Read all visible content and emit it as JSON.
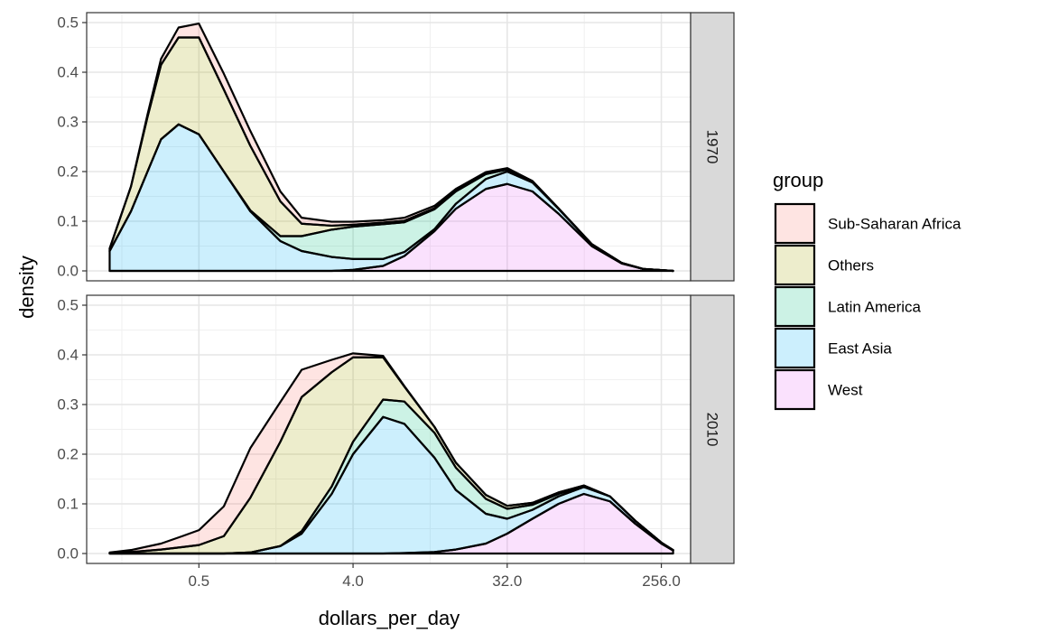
{
  "chart_data": {
    "type": "area",
    "subtype": "stacked-density",
    "xlabel": "dollars_per_day",
    "ylabel": "density",
    "x_scale": "log2",
    "x_ticks": [
      0.5,
      4.0,
      32.0,
      256.0
    ],
    "x_tick_labels": [
      "0.5",
      "4.0",
      "32.0",
      "256.0"
    ],
    "xlim": [
      0.11,
      380
    ],
    "ylim": [
      -0.02,
      0.52
    ],
    "y_ticks": [
      0.0,
      0.1,
      0.2,
      0.3,
      0.4,
      0.5
    ],
    "y_tick_labels": [
      "0.0",
      "0.1",
      "0.2",
      "0.3",
      "0.4",
      "0.5"
    ],
    "grid": true,
    "legend": {
      "title": "group",
      "position": "right",
      "entries": [
        "Sub-Saharan Africa",
        "Others",
        "Latin America",
        "East Asia",
        "West"
      ]
    },
    "colors": {
      "Sub-Saharan Africa": "#F8766D",
      "Others": "#A3A500",
      "Latin America": "#00BF7D",
      "East Asia": "#00B0F6",
      "West": "#E76BF3"
    },
    "panels": [
      {
        "label": "1970",
        "x": [
          0.15,
          0.2,
          0.25,
          0.3,
          0.38,
          0.5,
          0.7,
          1.0,
          1.5,
          2.0,
          3.0,
          4.0,
          6.0,
          8.0,
          12.0,
          16.0,
          24.0,
          32.0,
          45.0,
          64.0,
          100.0,
          150.0,
          200.0,
          300.0
        ],
        "series": [
          {
            "name": "West",
            "values": [
              0,
              0,
              0,
              0,
              0,
              0,
              0,
              0,
              0,
              0,
              0,
              0.002,
              0.01,
              0.03,
              0.08,
              0.125,
              0.165,
              0.175,
              0.16,
              0.115,
              0.05,
              0.015,
              0.004,
              0
            ]
          },
          {
            "name": "East Asia",
            "values": [
              0.04,
              0.12,
              0.2,
              0.265,
              0.295,
              0.275,
              0.2,
              0.12,
              0.06,
              0.04,
              0.028,
              0.022,
              0.014,
              0.008,
              0.004,
              0.01,
              0.02,
              0.025,
              0.018,
              0.01,
              0.004,
              0.001,
              0,
              0
            ]
          },
          {
            "name": "Latin America",
            "values": [
              0,
              0,
              0,
              0,
              0,
              0,
              0,
              0.002,
              0.01,
              0.03,
              0.055,
              0.065,
              0.07,
              0.06,
              0.04,
              0.025,
              0.01,
              0.004,
              0.002,
              0,
              0,
              0,
              0,
              0
            ]
          },
          {
            "name": "Others",
            "values": [
              0.005,
              0.05,
              0.11,
              0.15,
              0.175,
              0.195,
              0.165,
              0.13,
              0.07,
              0.025,
              0.008,
              0.004,
              0.003,
              0.003,
              0.002,
              0.002,
              0.002,
              0.002,
              0.001,
              0.001,
              0,
              0,
              0,
              0
            ]
          },
          {
            "name": "Sub-Saharan Africa",
            "values": [
              0,
              0,
              0.005,
              0.012,
              0.02,
              0.028,
              0.032,
              0.03,
              0.02,
              0.012,
              0.008,
              0.006,
              0.005,
              0.006,
              0.005,
              0.003,
              0.002,
              0.001,
              0,
              0,
              0,
              0,
              0,
              0
            ]
          }
        ]
      },
      {
        "label": "2010",
        "x": [
          0.15,
          0.2,
          0.3,
          0.4,
          0.5,
          0.7,
          1.0,
          1.5,
          2.0,
          3.0,
          4.0,
          6.0,
          8.0,
          12.0,
          16.0,
          24.0,
          32.0,
          45.0,
          64.0,
          90.0,
          128.0,
          180.0,
          256.0,
          300.0
        ],
        "series": [
          {
            "name": "West",
            "values": [
              0,
              0,
              0,
              0,
              0,
              0,
              0,
              0,
              0,
              0,
              0,
              0,
              0.001,
              0.003,
              0.008,
              0.02,
              0.04,
              0.07,
              0.1,
              0.12,
              0.105,
              0.06,
              0.02,
              0.006
            ]
          },
          {
            "name": "East Asia",
            "values": [
              0,
              0,
              0,
              0,
              0,
              0,
              0.002,
              0.015,
              0.04,
              0.12,
              0.2,
              0.275,
              0.26,
              0.19,
              0.12,
              0.06,
              0.03,
              0.018,
              0.015,
              0.014,
              0.01,
              0.006,
              0.002,
              0.001
            ]
          },
          {
            "name": "Latin America",
            "values": [
              0,
              0,
              0,
              0,
              0,
              0,
              0,
              0,
              0.005,
              0.015,
              0.025,
              0.035,
              0.045,
              0.05,
              0.045,
              0.03,
              0.02,
              0.01,
              0.005,
              0.002,
              0,
              0,
              0,
              0
            ]
          },
          {
            "name": "Others",
            "values": [
              0.001,
              0.003,
              0.008,
              0.013,
              0.017,
              0.035,
              0.11,
              0.21,
              0.27,
              0.23,
              0.17,
              0.085,
              0.03,
              0.012,
              0.01,
              0.008,
              0.006,
              0.004,
              0.003,
              0.001,
              0,
              0,
              0,
              0
            ]
          },
          {
            "name": "Sub-Saharan Africa",
            "values": [
              0.001,
              0.004,
              0.012,
              0.022,
              0.03,
              0.06,
              0.1,
              0.08,
              0.055,
              0.025,
              0.008,
              0.003,
              0.001,
              0,
              0,
              0,
              0,
              0,
              0,
              0,
              0,
              0,
              0,
              0
            ]
          }
        ]
      }
    ]
  }
}
